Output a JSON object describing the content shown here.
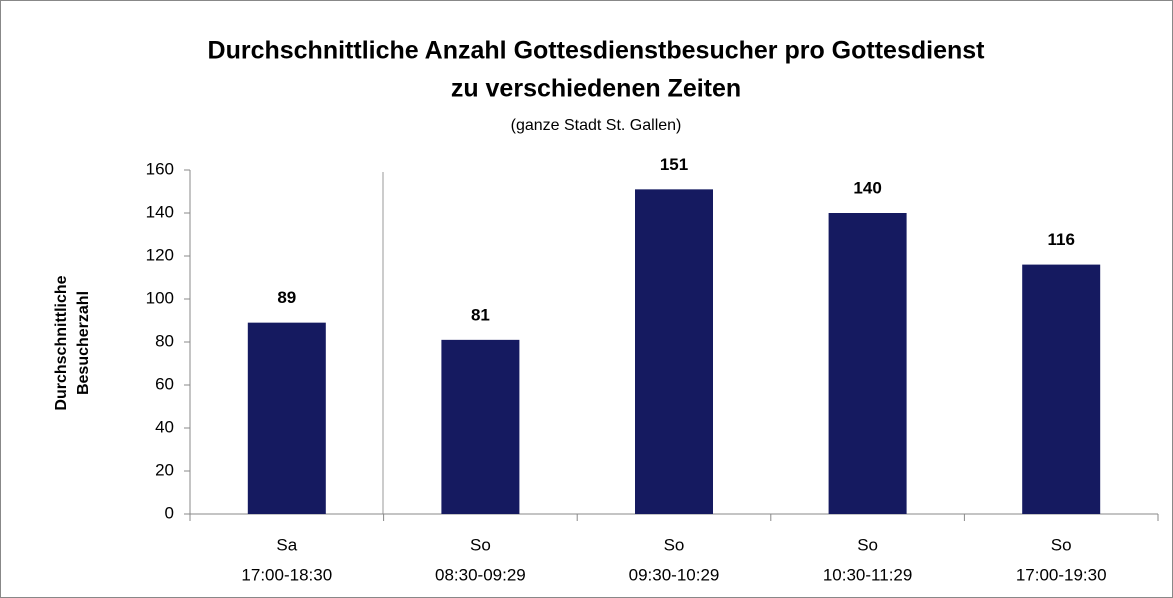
{
  "chart_data": {
    "type": "bar",
    "title": [
      "Durchschnittliche Anzahl Gottesdienstbesucher pro Gottesdienst",
      "zu verschiedenen Zeiten"
    ],
    "subtitle": "(ganze Stadt St. Gallen)",
    "y_label": [
      "Durchschnittliche",
      "Besucherzahl"
    ],
    "categories": [
      [
        "Sa",
        "17:00-18:30"
      ],
      [
        "So",
        "08:30-09:29"
      ],
      [
        "So",
        "09:30-10:29"
      ],
      [
        "So",
        "10:30-11:29"
      ],
      [
        "So",
        "17:00-19:30"
      ]
    ],
    "values": [
      89,
      81,
      151,
      140,
      116
    ],
    "color": "#151a60",
    "ylim": [
      0,
      160
    ],
    "yticks": [
      0,
      20,
      40,
      60,
      80,
      100,
      120,
      140,
      160
    ],
    "grid": false
  }
}
